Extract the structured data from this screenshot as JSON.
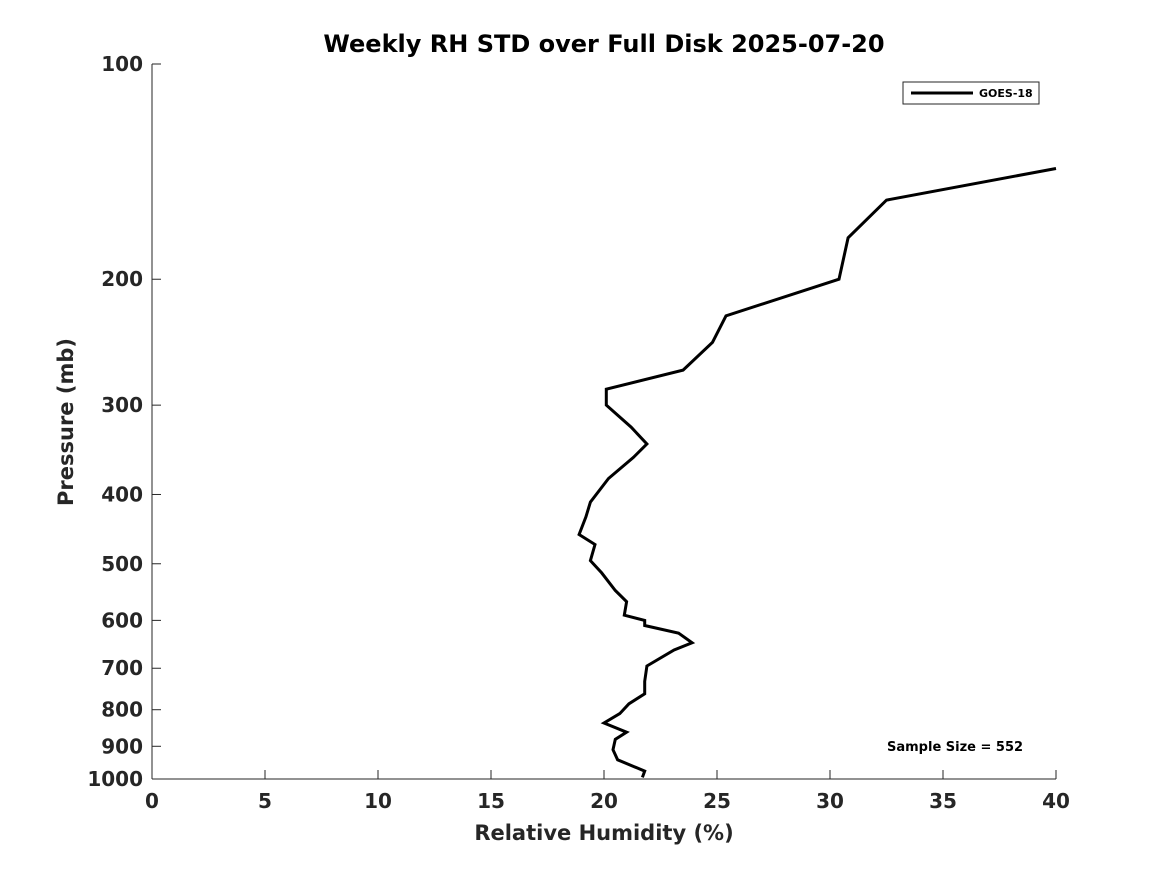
{
  "chart_data": {
    "type": "line",
    "title": "Weekly RH STD over Full Disk 2025-07-20",
    "xlabel": "Relative Humidity (%)",
    "ylabel": "Pressure (mb)",
    "xlim": [
      0,
      40
    ],
    "ylim": [
      100,
      1000
    ],
    "yscale": "log",
    "y_reversed": true,
    "xticks": [
      0,
      5,
      10,
      15,
      20,
      25,
      30,
      35,
      40
    ],
    "xtick_labels": [
      "0",
      "5",
      "10",
      "15",
      "20",
      "25",
      "30",
      "35",
      "40"
    ],
    "yticks": [
      100,
      200,
      300,
      400,
      500,
      600,
      700,
      800,
      900,
      1000
    ],
    "ytick_labels": [
      "100",
      "200",
      "300",
      "400",
      "500",
      "600",
      "700",
      "800",
      "900",
      "1000"
    ],
    "grid": false,
    "legend_position": "top-right",
    "series": [
      {
        "name": "GOES-18",
        "color": "#000000",
        "x": [
          40.0,
          32.5,
          30.8,
          30.4,
          25.4,
          24.8,
          23.5,
          20.1,
          20.1,
          21.2,
          21.9,
          21.3,
          20.2,
          19.4,
          19.2,
          18.9,
          19.6,
          19.4,
          19.9,
          20.5,
          21.0,
          20.9,
          21.8,
          21.8,
          23.3,
          23.9,
          23.1,
          21.9,
          21.8,
          21.8,
          21.1,
          20.7,
          20.0,
          21.0,
          20.5,
          20.4,
          20.6,
          21.8,
          21.7
        ],
        "y": [
          140,
          155,
          175,
          200,
          225,
          245,
          268,
          285,
          300,
          322,
          340,
          355,
          380,
          410,
          430,
          455,
          470,
          495,
          515,
          545,
          565,
          590,
          600,
          610,
          625,
          645,
          660,
          695,
          730,
          760,
          785,
          810,
          835,
          860,
          880,
          910,
          940,
          975,
          995
        ]
      }
    ],
    "annotations": [
      "Sample Size = 552"
    ]
  }
}
